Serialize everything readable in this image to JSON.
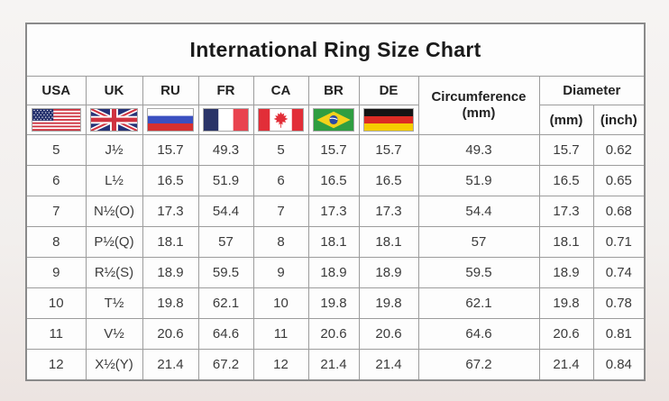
{
  "title": "International Ring Size Chart",
  "colors": {
    "background": "#f2efed",
    "table_background": "#fdfdfd",
    "grid_border": "#9c9c9c",
    "outer_border": "#8a8a8a",
    "header_text": "#222222",
    "cell_text": "#3b3b3b"
  },
  "table": {
    "country_columns": [
      {
        "label": "USA",
        "flag_icon": "usa-flag"
      },
      {
        "label": "UK",
        "flag_icon": "uk-flag"
      },
      {
        "label": "RU",
        "flag_icon": "russia-flag"
      },
      {
        "label": "FR",
        "flag_icon": "france-flag"
      },
      {
        "label": "CA",
        "flag_icon": "canada-flag"
      },
      {
        "label": "BR",
        "flag_icon": "brazil-flag"
      },
      {
        "label": "DE",
        "flag_icon": "germany-flag"
      }
    ],
    "circumference_header": "Circumference",
    "circumference_unit": "(mm)",
    "diameter_header": "Diameter",
    "diameter_units": [
      "(mm)",
      "(inch)"
    ]
  },
  "chart_data": {
    "type": "table",
    "title": "International Ring Size Chart",
    "columns": [
      "USA",
      "UK",
      "RU",
      "FR",
      "CA",
      "BR",
      "DE",
      "Circumference (mm)",
      "Diameter (mm)",
      "Diameter (inch)"
    ],
    "rows": [
      [
        "5",
        "J½",
        "15.7",
        "49.3",
        "5",
        "15.7",
        "15.7",
        "49.3",
        "15.7",
        "0.62"
      ],
      [
        "6",
        "L½",
        "16.5",
        "51.9",
        "6",
        "16.5",
        "16.5",
        "51.9",
        "16.5",
        "0.65"
      ],
      [
        "7",
        "N½(O)",
        "17.3",
        "54.4",
        "7",
        "17.3",
        "17.3",
        "54.4",
        "17.3",
        "0.68"
      ],
      [
        "8",
        "P½(Q)",
        "18.1",
        "57",
        "8",
        "18.1",
        "18.1",
        "57",
        "18.1",
        "0.71"
      ],
      [
        "9",
        "R½(S)",
        "18.9",
        "59.5",
        "9",
        "18.9",
        "18.9",
        "59.5",
        "18.9",
        "0.74"
      ],
      [
        "10",
        "T½",
        "19.8",
        "62.1",
        "10",
        "19.8",
        "19.8",
        "62.1",
        "19.8",
        "0.78"
      ],
      [
        "11",
        "V½",
        "20.6",
        "64.6",
        "11",
        "20.6",
        "20.6",
        "64.6",
        "20.6",
        "0.81"
      ],
      [
        "12",
        "X½(Y)",
        "21.4",
        "67.2",
        "12",
        "21.4",
        "21.4",
        "67.2",
        "21.4",
        "0.84"
      ]
    ]
  }
}
